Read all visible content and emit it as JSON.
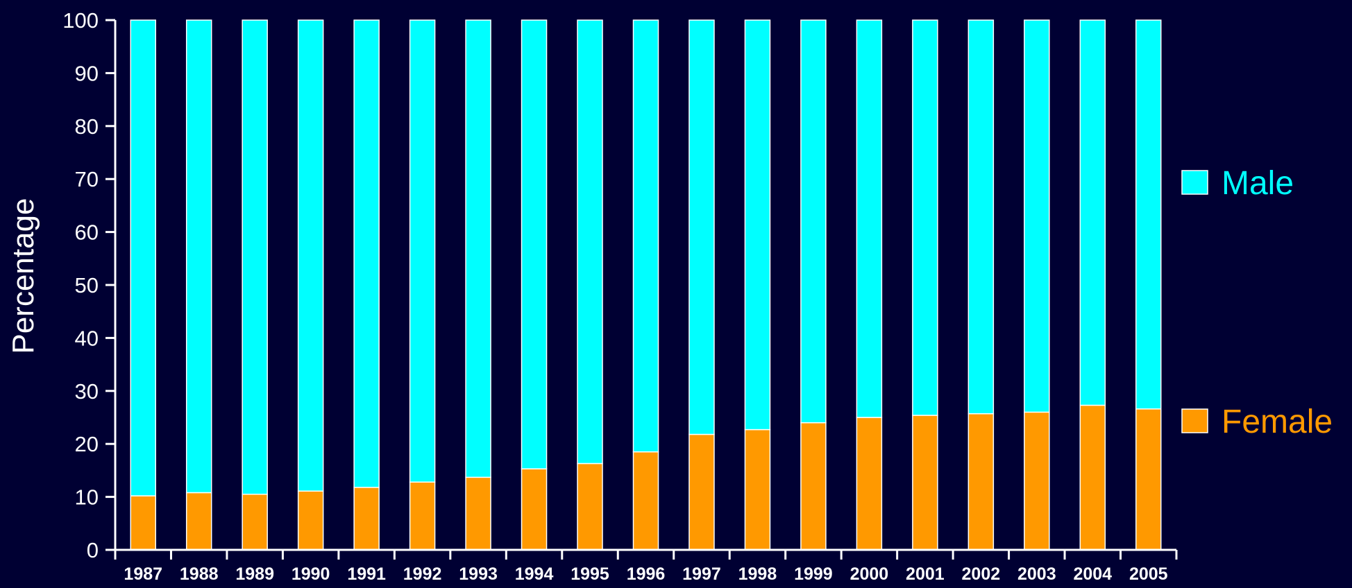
{
  "chart_data": {
    "type": "bar",
    "stacked": true,
    "categories": [
      "1987",
      "1988",
      "1989",
      "1990",
      "1991",
      "1992",
      "1993",
      "1994",
      "1995",
      "1996",
      "1997",
      "1998",
      "1999",
      "2000",
      "2001",
      "2002",
      "2003",
      "2004",
      "2005"
    ],
    "series": [
      {
        "name": "Female",
        "color": "#FF9900",
        "values": [
          10.2,
          10.8,
          10.5,
          11.1,
          11.8,
          12.8,
          13.7,
          15.3,
          16.3,
          18.5,
          21.8,
          22.7,
          24.0,
          25.0,
          25.4,
          25.7,
          26.0,
          27.3,
          26.6
        ]
      },
      {
        "name": "Male",
        "color": "#00FFFF",
        "values": [
          89.8,
          89.2,
          89.5,
          88.9,
          88.2,
          87.2,
          86.3,
          84.7,
          83.7,
          81.5,
          78.2,
          77.3,
          76.0,
          75.0,
          74.6,
          74.3,
          74.0,
          72.7,
          73.4
        ]
      }
    ],
    "ylabel": "Percentage",
    "xlabel": "",
    "ylim": [
      0,
      100
    ],
    "yticks": [
      "0",
      "10",
      "20",
      "30",
      "40",
      "50",
      "60",
      "70",
      "80",
      "90",
      "100"
    ],
    "grid": false,
    "legend_position": "right",
    "legend_order": [
      "Male",
      "Female"
    ],
    "colors": {
      "background": "#000033",
      "text": "#FFFFFF",
      "male": "#00FFFF",
      "female": "#FF9900"
    }
  }
}
